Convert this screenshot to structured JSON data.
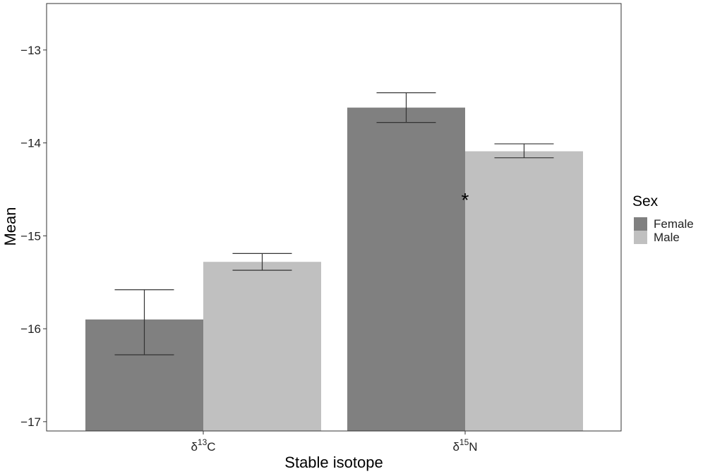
{
  "chart_data": {
    "type": "bar",
    "title": "",
    "xlabel": "Stable isotope",
    "ylabel": "Mean",
    "y_reversed": true,
    "ylim": [
      -12.5,
      -17.1
    ],
    "yticks": [
      -13,
      -14,
      -15,
      -16,
      -17
    ],
    "ytick_labels": [
      "−13",
      "−14",
      "−15",
      "−16",
      "−17"
    ],
    "categories": [
      {
        "symbol": "δ",
        "sup": "13",
        "element": "C"
      },
      {
        "symbol": "δ",
        "sup": "15",
        "element": "N"
      }
    ],
    "series": [
      {
        "name": "Female",
        "color": "#808080",
        "values": [
          -15.9,
          -13.62
        ],
        "err_low": [
          -15.58,
          -13.46
        ],
        "err_high": [
          -16.28,
          -13.78
        ]
      },
      {
        "name": "Male",
        "color": "#c0c0c0",
        "values": [
          -15.28,
          -14.09
        ],
        "err_low": [
          -15.19,
          -14.01
        ],
        "err_high": [
          -15.37,
          -14.16
        ]
      }
    ],
    "legend": {
      "title": "Sex",
      "position": "right"
    },
    "annotations": [
      {
        "text": "*",
        "category_index": 1,
        "y": -14.55
      }
    ],
    "grid": false
  }
}
